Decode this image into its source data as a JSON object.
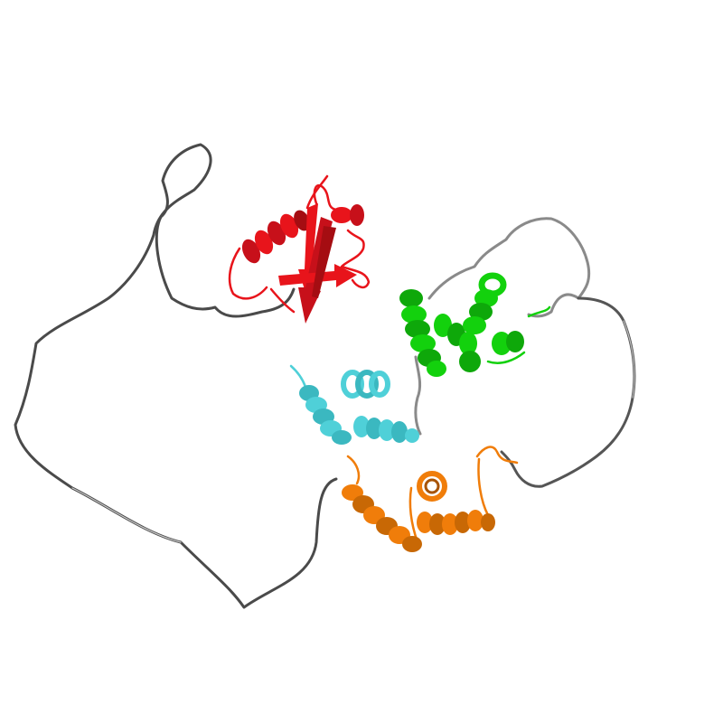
{
  "scene": {
    "background": "#ffffff",
    "loop_color": "#4a4a4a",
    "loop_highlight": "#b5b5b5"
  },
  "domains": [
    {
      "id": "domain-1",
      "color": "#e8141b",
      "shade": "#a50d12",
      "kind": "beta-sheet-with-helix"
    },
    {
      "id": "domain-2",
      "color": "#13d10d",
      "shade": "#0a8c07",
      "kind": "helical-bundle"
    },
    {
      "id": "domain-3",
      "color": "#4fd0d8",
      "shade": "#2a97a0",
      "kind": "helical-bundle"
    },
    {
      "id": "domain-4",
      "color": "#f07d0a",
      "shade": "#a85405",
      "kind": "helical-bundle"
    }
  ]
}
